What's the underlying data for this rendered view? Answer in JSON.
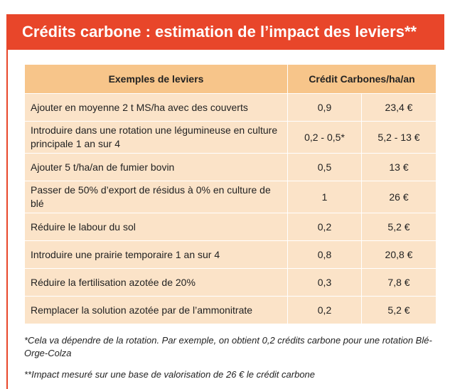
{
  "title": "Crédits carbone : estimation de l’impact des leviers**",
  "colors": {
    "accent": "#e8462a",
    "header_bg": "#f7c58a",
    "row_bg": "#fbe3c8"
  },
  "table": {
    "headers": {
      "lever": "Exemples de leviers",
      "credit": "Crédit Carbones/ha/an"
    },
    "rows": [
      {
        "lever": "Ajouter en moyenne 2 t MS/ha avec des couverts",
        "credits": "0,9",
        "value": "23,4 €"
      },
      {
        "lever": "Introduire dans une rotation une légumineuse en culture principale 1 an sur 4",
        "credits": "0,2 - 0,5*",
        "value": "5,2 - 13 €"
      },
      {
        "lever": "Ajouter 5 t/ha/an de fumier bovin",
        "credits": "0,5",
        "value": "13 €"
      },
      {
        "lever": "Passer de 50% d’export de résidus à 0% en culture de blé",
        "credits": "1",
        "value": "26 €"
      },
      {
        "lever": "Réduire le labour du sol",
        "credits": "0,2",
        "value": "5,2 €"
      },
      {
        "lever": "Introduire une prairie temporaire 1 an sur 4",
        "credits": "0,8",
        "value": "20,8 €"
      },
      {
        "lever": "Réduire la fertilisation azotée de 20%",
        "credits": "0,3",
        "value": "7,8 €"
      },
      {
        "lever": "Remplacer la solution azotée par de l’ammonitrate",
        "credits": "0,2",
        "value": "5,2 €"
      }
    ]
  },
  "footnotes": {
    "note1": "*Cela va dépendre de la rotation. Par exemple, on obtient 0,2 crédits carbone pour une rotation Blé-Orge-Colza",
    "note2": "**Impact mesuré sur une base de valorisation de 26 € le crédit carbone"
  }
}
